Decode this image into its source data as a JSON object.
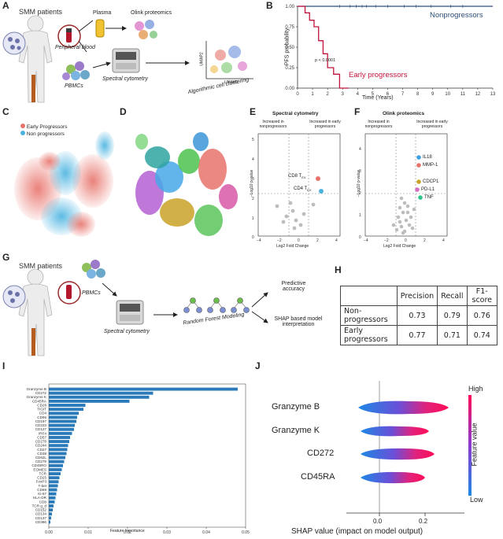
{
  "panels": {
    "A": {
      "label": "A",
      "smm_patients": "SMM patients",
      "peripheral_blood": "Peripheral blood",
      "plasma": "Plasma",
      "olink_proteomics": "Olink proteomics",
      "pbmcs": "PBMCs",
      "spectral_cytometry": "Spectral cytometry",
      "algorithmic_clustering": "Algorithmic cell clustering",
      "umap1": "UMAP1",
      "umap2": "UMAP2"
    },
    "B": {
      "label": "B",
      "ylabel": "PFS probability",
      "xlabel": "Time (Years)",
      "series1": "Nonprogressors",
      "series2": "Early progressors",
      "pvalue": "p < 0.0001"
    },
    "C": {
      "label": "C",
      "legend1": "Early Progressors",
      "legend2": "Non progressors",
      "color1": "#e8736b",
      "color2": "#4ab3e0"
    },
    "D": {
      "label": "D"
    },
    "E": {
      "label": "E",
      "title": "Spectral cytometry",
      "left_note": "Increased in nonprogressors",
      "right_note": "Increased in early progressors",
      "ylabel": "−Log10 p-value",
      "xlabel": "Log2 Fold Change",
      "pt1": "CD8 T",
      "pt1_sub": "EX",
      "pt2": "CD4 T",
      "pt2_sub": "EX"
    },
    "F": {
      "label": "F",
      "title": "Olink proteomics",
      "left_note": "Increased in nonprogressors",
      "right_note": "Increased in early progressors",
      "ylabel": "−Log10 p-value",
      "xlabel": "Log2 Fold Change",
      "genes": [
        "IL18",
        "MMP-1",
        "CDCP1",
        "PD-L1",
        "TNF"
      ]
    },
    "G": {
      "label": "G",
      "smm_patients": "SMM patients",
      "pbmcs": "PBMCs",
      "spectral_cytometry": "Spectral cytometry",
      "random_forest": "Random Forest Modeling",
      "predictive": "Predictive accuracy",
      "shap": "SHAP based model interpretation"
    },
    "H": {
      "label": "H",
      "headers": [
        "",
        "Precision",
        "Recall",
        "F1-score"
      ],
      "rows": [
        [
          "Non-progressors",
          "0.73",
          "0.79",
          "0.76"
        ],
        [
          "Early progressors",
          "0.77",
          "0.71",
          "0.74"
        ]
      ]
    },
    "I": {
      "label": "I",
      "xlabel": "Feature Importance"
    },
    "J": {
      "label": "J",
      "features": [
        "Granzyme B",
        "Granzyme K",
        "CD272",
        "CD45RA"
      ],
      "xlabel": "SHAP value (impact on model output)",
      "ticks": [
        "0.0",
        "0.2"
      ],
      "cbar_high": "High",
      "cbar_low": "Low",
      "cbar_label": "Feature value"
    }
  },
  "chart_data": [
    {
      "type": "line",
      "title": "",
      "xlabel": "Time (Years)",
      "ylabel": "PFS probability",
      "xlim": [
        0,
        13
      ],
      "ylim": [
        0,
        1
      ],
      "xticks": [
        0,
        1,
        2,
        3,
        4,
        5,
        6,
        7,
        8,
        9,
        10,
        11,
        12,
        13
      ],
      "yticks": [
        "0.00",
        "0.25",
        "0.50",
        "0.75",
        "1.00"
      ],
      "series": [
        {
          "name": "Nonprogressors",
          "color": "#2c4f7c",
          "x": [
            0,
            13
          ],
          "y": [
            1.0,
            1.0
          ]
        },
        {
          "name": "Early progressors",
          "color": "#c0143c",
          "x": [
            0,
            0.5,
            0.5,
            0.8,
            0.8,
            1.1,
            1.1,
            1.4,
            1.4,
            1.7,
            1.7,
            2.0,
            2.0,
            2.4,
            2.4,
            2.8,
            2.8,
            3.4
          ],
          "y": [
            1.0,
            1.0,
            0.92,
            0.92,
            0.83,
            0.83,
            0.75,
            0.75,
            0.58,
            0.58,
            0.42,
            0.42,
            0.25,
            0.25,
            0.17,
            0.17,
            0.0,
            0.0
          ]
        }
      ]
    },
    {
      "type": "bar",
      "xlabel": "Feature Importance",
      "xlim": [
        0,
        0.05
      ],
      "xticks": [
        "0.00",
        "0.01",
        "0.02",
        "0.03",
        "0.04",
        "0.05"
      ],
      "categories": [
        "Granzyme B",
        "CD272",
        "Granzyme K",
        "CD45RA",
        "CD28",
        "TIGIT",
        "CD4",
        "CD95",
        "CD197",
        "CD223",
        "CD127",
        "IRF4",
        "CD57",
        "CD278",
        "CD244",
        "CD27",
        "CD38",
        "CD62L",
        "CD279",
        "CD45RO",
        "EOMES",
        "TCR",
        "CD25",
        "FoxP3",
        "T-bet",
        "CD69",
        "Ki-67",
        "HLA-DR",
        "CD8",
        "TCR g_d",
        "CD152",
        "CD134",
        "CD137",
        "CD366"
      ],
      "values": [
        0.048,
        0.0265,
        0.0255,
        0.0205,
        0.0093,
        0.0088,
        0.0076,
        0.0072,
        0.007,
        0.0066,
        0.0064,
        0.0059,
        0.0054,
        0.0052,
        0.0049,
        0.0047,
        0.0045,
        0.0042,
        0.0039,
        0.0036,
        0.0033,
        0.003,
        0.0027,
        0.0025,
        0.0023,
        0.0021,
        0.0019,
        0.0017,
        0.0015,
        0.0012,
        0.001,
        0.0008,
        0.0006,
        0.0004
      ]
    }
  ]
}
